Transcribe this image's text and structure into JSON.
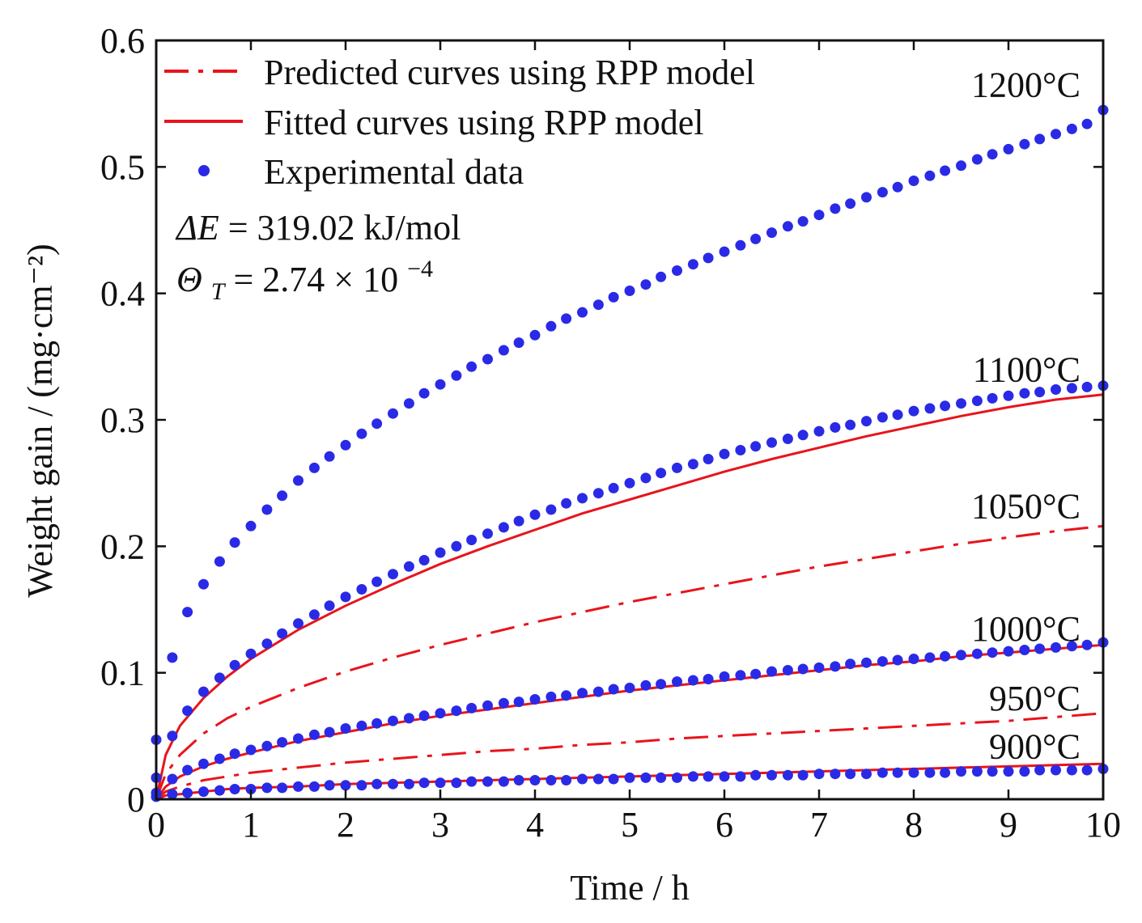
{
  "chart_data": {
    "type": "line",
    "xlabel": "Time / h",
    "ylabel": "Weight gain / (mg·cm⁻²)",
    "xlim": [
      0,
      10
    ],
    "ylim": [
      0,
      0.6
    ],
    "xticks": [
      "0",
      "1",
      "2",
      "3",
      "4",
      "5",
      "6",
      "7",
      "8",
      "9",
      "10"
    ],
    "yticks": [
      "0",
      "0.1",
      "0.2",
      "0.3",
      "0.4",
      "0.5",
      "0.6"
    ],
    "grid": false,
    "legend_position": "top-left",
    "legend": {
      "predicted": "Predicted curves using RPP model",
      "fitted": "Fitted curves using RPP model",
      "experimental": "Experimental data"
    },
    "annotations": {
      "deltaE_sym": "ΔE",
      "deltaE_val": " = 319.02 kJ/mol",
      "theta_sym": "Θ",
      "theta_sub": "T",
      "theta_val": " = 2.74 × 10",
      "theta_exp": "−4"
    },
    "colors": {
      "curves": "#e8141c",
      "points": "#2a2ae6"
    },
    "series": [
      {
        "label": "1200°C",
        "kind": "experimental",
        "x": [
          0,
          0.17,
          0.33,
          0.5,
          0.67,
          0.83,
          1,
          1.17,
          1.33,
          1.5,
          1.67,
          1.83,
          2,
          2.17,
          2.33,
          2.5,
          2.67,
          2.83,
          3,
          3.17,
          3.33,
          3.5,
          3.67,
          3.83,
          4,
          4.17,
          4.33,
          4.5,
          4.67,
          4.83,
          5,
          5.17,
          5.33,
          5.5,
          5.67,
          5.83,
          6,
          6.17,
          6.33,
          6.5,
          6.67,
          6.83,
          7,
          7.17,
          7.33,
          7.5,
          7.67,
          7.83,
          8,
          8.17,
          8.33,
          8.5,
          8.67,
          8.83,
          9,
          9.17,
          9.33,
          9.5,
          9.67,
          9.83,
          10
        ],
        "y": [
          0.047,
          0.112,
          0.148,
          0.17,
          0.188,
          0.203,
          0.216,
          0.229,
          0.24,
          0.252,
          0.262,
          0.271,
          0.28,
          0.289,
          0.297,
          0.305,
          0.313,
          0.321,
          0.328,
          0.335,
          0.342,
          0.348,
          0.355,
          0.361,
          0.367,
          0.374,
          0.38,
          0.385,
          0.391,
          0.397,
          0.402,
          0.407,
          0.413,
          0.418,
          0.423,
          0.428,
          0.433,
          0.438,
          0.443,
          0.448,
          0.453,
          0.457,
          0.462,
          0.467,
          0.471,
          0.476,
          0.48,
          0.484,
          0.489,
          0.493,
          0.497,
          0.501,
          0.506,
          0.51,
          0.514,
          0.518,
          0.522,
          0.526,
          0.53,
          0.534,
          0.545
        ]
      },
      {
        "label": "1100°C",
        "kind": "experimental",
        "x": [
          0,
          0.17,
          0.33,
          0.5,
          0.67,
          0.83,
          1,
          1.17,
          1.33,
          1.5,
          1.67,
          1.83,
          2,
          2.17,
          2.33,
          2.5,
          2.67,
          2.83,
          3,
          3.17,
          3.33,
          3.5,
          3.67,
          3.83,
          4,
          4.17,
          4.33,
          4.5,
          4.67,
          4.83,
          5,
          5.17,
          5.33,
          5.5,
          5.67,
          5.83,
          6,
          6.17,
          6.33,
          6.5,
          6.67,
          6.83,
          7,
          7.17,
          7.33,
          7.5,
          7.67,
          7.83,
          8,
          8.17,
          8.33,
          8.5,
          8.67,
          8.83,
          9,
          9.17,
          9.33,
          9.5,
          9.67,
          9.83,
          10
        ],
        "y": [
          0.017,
          0.05,
          0.07,
          0.085,
          0.096,
          0.106,
          0.115,
          0.123,
          0.131,
          0.139,
          0.146,
          0.153,
          0.16,
          0.166,
          0.172,
          0.178,
          0.184,
          0.189,
          0.195,
          0.2,
          0.205,
          0.21,
          0.215,
          0.22,
          0.225,
          0.229,
          0.234,
          0.238,
          0.242,
          0.246,
          0.25,
          0.254,
          0.258,
          0.262,
          0.265,
          0.269,
          0.273,
          0.276,
          0.279,
          0.282,
          0.285,
          0.288,
          0.291,
          0.294,
          0.296,
          0.299,
          0.302,
          0.304,
          0.307,
          0.309,
          0.311,
          0.313,
          0.315,
          0.317,
          0.319,
          0.321,
          0.322,
          0.324,
          0.325,
          0.326,
          0.327
        ]
      },
      {
        "label": "1100°C",
        "kind": "fitted",
        "x": [
          0,
          0.1,
          0.25,
          0.5,
          0.75,
          1,
          1.5,
          2,
          2.5,
          3,
          3.5,
          4,
          4.5,
          5,
          5.5,
          6,
          6.5,
          7,
          7.5,
          8,
          8.5,
          9,
          9.5,
          10
        ],
        "y": [
          0,
          0.035,
          0.058,
          0.08,
          0.097,
          0.111,
          0.134,
          0.153,
          0.17,
          0.186,
          0.2,
          0.213,
          0.226,
          0.237,
          0.248,
          0.259,
          0.269,
          0.278,
          0.287,
          0.295,
          0.303,
          0.31,
          0.316,
          0.32
        ]
      },
      {
        "label": "1050°C",
        "kind": "predicted",
        "x": [
          0,
          0.1,
          0.25,
          0.5,
          0.75,
          1,
          1.5,
          2,
          2.5,
          3,
          3.5,
          4,
          4.5,
          5,
          5.5,
          6,
          6.5,
          7,
          7.5,
          8,
          8.5,
          9,
          9.5,
          10
        ],
        "y": [
          0,
          0.02,
          0.035,
          0.052,
          0.064,
          0.073,
          0.088,
          0.101,
          0.112,
          0.122,
          0.131,
          0.14,
          0.148,
          0.156,
          0.163,
          0.17,
          0.177,
          0.184,
          0.19,
          0.196,
          0.202,
          0.207,
          0.212,
          0.216
        ]
      },
      {
        "label": "1000°C",
        "kind": "experimental",
        "x": [
          0,
          0.17,
          0.33,
          0.5,
          0.67,
          0.83,
          1,
          1.17,
          1.33,
          1.5,
          1.67,
          1.83,
          2,
          2.17,
          2.33,
          2.5,
          2.67,
          2.83,
          3,
          3.17,
          3.33,
          3.5,
          3.67,
          3.83,
          4,
          4.17,
          4.33,
          4.5,
          4.67,
          4.83,
          5,
          5.17,
          5.33,
          5.5,
          5.67,
          5.83,
          6,
          6.17,
          6.33,
          6.5,
          6.67,
          6.83,
          7,
          7.17,
          7.33,
          7.5,
          7.67,
          7.83,
          8,
          8.17,
          8.33,
          8.5,
          8.67,
          8.83,
          9,
          9.17,
          9.33,
          9.5,
          9.67,
          9.83,
          10
        ],
        "y": [
          0.005,
          0.016,
          0.023,
          0.028,
          0.032,
          0.036,
          0.039,
          0.042,
          0.045,
          0.048,
          0.051,
          0.053,
          0.056,
          0.058,
          0.06,
          0.062,
          0.064,
          0.066,
          0.068,
          0.07,
          0.072,
          0.074,
          0.076,
          0.077,
          0.079,
          0.081,
          0.082,
          0.084,
          0.085,
          0.087,
          0.088,
          0.09,
          0.091,
          0.093,
          0.094,
          0.095,
          0.097,
          0.098,
          0.099,
          0.101,
          0.102,
          0.103,
          0.104,
          0.105,
          0.107,
          0.108,
          0.109,
          0.11,
          0.111,
          0.112,
          0.113,
          0.114,
          0.115,
          0.116,
          0.117,
          0.118,
          0.119,
          0.12,
          0.121,
          0.122,
          0.124
        ]
      },
      {
        "label": "1000°C",
        "kind": "fitted",
        "x": [
          0,
          0.1,
          0.25,
          0.5,
          0.75,
          1,
          1.5,
          2,
          2.5,
          3,
          3.5,
          4,
          4.5,
          5,
          5.5,
          6,
          6.5,
          7,
          7.5,
          8,
          8.5,
          9,
          9.5,
          10
        ],
        "y": [
          0,
          0.01,
          0.018,
          0.026,
          0.032,
          0.037,
          0.046,
          0.053,
          0.06,
          0.066,
          0.071,
          0.076,
          0.081,
          0.086,
          0.09,
          0.094,
          0.098,
          0.102,
          0.106,
          0.109,
          0.113,
          0.116,
          0.119,
          0.122
        ]
      },
      {
        "label": "950°C",
        "kind": "predicted",
        "x": [
          0,
          0.1,
          0.25,
          0.5,
          0.75,
          1,
          1.5,
          2,
          2.5,
          3,
          3.5,
          4,
          4.5,
          5,
          5.5,
          6,
          6.5,
          7,
          7.5,
          8,
          8.5,
          9,
          9.5,
          10
        ],
        "y": [
          0,
          0.006,
          0.01,
          0.015,
          0.018,
          0.021,
          0.025,
          0.029,
          0.032,
          0.035,
          0.038,
          0.04,
          0.043,
          0.045,
          0.048,
          0.05,
          0.052,
          0.054,
          0.056,
          0.058,
          0.06,
          0.062,
          0.065,
          0.068
        ]
      },
      {
        "label": "900°C",
        "kind": "experimental",
        "x": [
          0,
          0.17,
          0.33,
          0.5,
          0.67,
          0.83,
          1,
          1.17,
          1.33,
          1.5,
          1.67,
          1.83,
          2,
          2.17,
          2.33,
          2.5,
          2.67,
          2.83,
          3,
          3.17,
          3.33,
          3.5,
          3.67,
          3.83,
          4,
          4.17,
          4.33,
          4.5,
          4.67,
          4.83,
          5,
          5.17,
          5.33,
          5.5,
          5.67,
          5.83,
          6,
          6.17,
          6.33,
          6.5,
          6.67,
          6.83,
          7,
          7.17,
          7.33,
          7.5,
          7.67,
          7.83,
          8,
          8.17,
          8.33,
          8.5,
          8.67,
          8.83,
          9,
          9.17,
          9.33,
          9.5,
          9.67,
          9.83,
          10
        ],
        "y": [
          0.002,
          0.004,
          0.005,
          0.006,
          0.007,
          0.008,
          0.008,
          0.009,
          0.009,
          0.01,
          0.01,
          0.011,
          0.011,
          0.011,
          0.012,
          0.012,
          0.012,
          0.013,
          0.013,
          0.013,
          0.014,
          0.014,
          0.014,
          0.015,
          0.015,
          0.015,
          0.015,
          0.016,
          0.016,
          0.016,
          0.017,
          0.017,
          0.017,
          0.017,
          0.018,
          0.018,
          0.018,
          0.018,
          0.019,
          0.019,
          0.019,
          0.019,
          0.02,
          0.02,
          0.02,
          0.02,
          0.021,
          0.021,
          0.021,
          0.021,
          0.021,
          0.022,
          0.022,
          0.022,
          0.022,
          0.022,
          0.023,
          0.023,
          0.023,
          0.023,
          0.024
        ]
      },
      {
        "label": "900°C",
        "kind": "fitted",
        "x": [
          0,
          0.1,
          0.25,
          0.5,
          0.75,
          1,
          1.5,
          2,
          2.5,
          3,
          3.5,
          4,
          4.5,
          5,
          5.5,
          6,
          6.5,
          7,
          7.5,
          8,
          8.5,
          9,
          9.5,
          10
        ],
        "y": [
          0,
          0.003,
          0.004,
          0.006,
          0.008,
          0.009,
          0.01,
          0.012,
          0.013,
          0.014,
          0.015,
          0.016,
          0.017,
          0.018,
          0.019,
          0.02,
          0.021,
          0.022,
          0.023,
          0.024,
          0.025,
          0.026,
          0.027,
          0.028
        ]
      }
    ],
    "curve_labels": [
      {
        "text": "1200°C",
        "x": 10,
        "y": 0.565
      },
      {
        "text": "1100°C",
        "x": 10,
        "y": 0.34
      },
      {
        "text": "1050°C",
        "x": 10,
        "y": 0.232
      },
      {
        "text": "1000°C",
        "x": 10,
        "y": 0.135
      },
      {
        "text": "950°C",
        "x": 10,
        "y": 0.08
      },
      {
        "text": "900°C",
        "x": 10,
        "y": 0.042
      }
    ]
  }
}
